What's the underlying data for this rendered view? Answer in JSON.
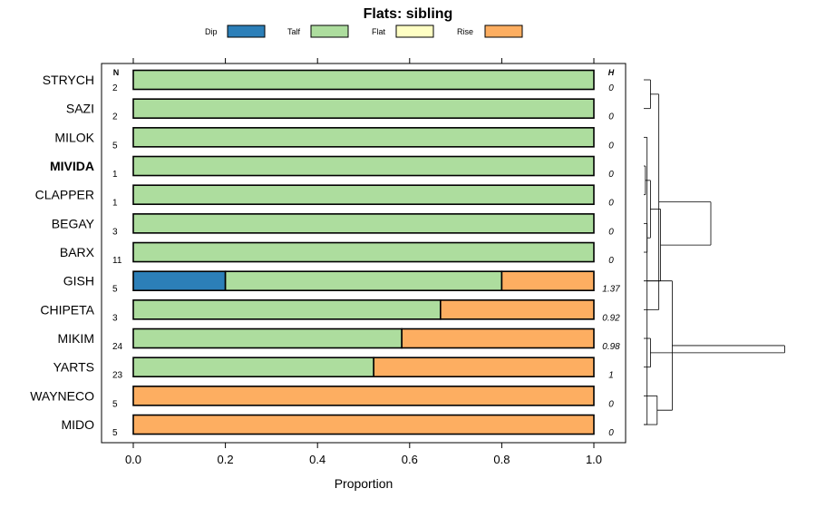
{
  "chart_data": {
    "type": "bar",
    "stacked": true,
    "orientation": "horizontal",
    "title": "Flats: sibling",
    "xlabel": "Proportion",
    "xlim": [
      0,
      1
    ],
    "x_ticks": [
      0,
      0.2,
      0.4,
      0.6,
      0.8,
      1
    ],
    "x_tick_labels": [
      "0.0",
      "0.2",
      "0.4",
      "0.6",
      "0.8",
      "1.0"
    ],
    "n_header": "N",
    "h_header": "H",
    "legend": [
      {
        "name": "Dip",
        "color": "#2c7fb8"
      },
      {
        "name": "Talf",
        "color": "#addd9e"
      },
      {
        "name": "Flat",
        "color": "#ffffc4"
      },
      {
        "name": "Rise",
        "color": "#fdae61"
      }
    ],
    "rows": [
      {
        "label": "STRYCH",
        "bold": false,
        "n": "2",
        "h": "0",
        "values": [
          0,
          1,
          0,
          0
        ]
      },
      {
        "label": "SAZI",
        "bold": false,
        "n": "2",
        "h": "0",
        "values": [
          0,
          1,
          0,
          0
        ]
      },
      {
        "label": "MILOK",
        "bold": false,
        "n": "5",
        "h": "0",
        "values": [
          0,
          1,
          0,
          0
        ]
      },
      {
        "label": "MIVIDA",
        "bold": true,
        "n": "1",
        "h": "0",
        "values": [
          0,
          1,
          0,
          0
        ]
      },
      {
        "label": "CLAPPER",
        "bold": false,
        "n": "1",
        "h": "0",
        "values": [
          0,
          1,
          0,
          0
        ]
      },
      {
        "label": "BEGAY",
        "bold": false,
        "n": "3",
        "h": "0",
        "values": [
          0,
          1,
          0,
          0
        ]
      },
      {
        "label": "BARX",
        "bold": false,
        "n": "11",
        "h": "0",
        "values": [
          0,
          1,
          0,
          0
        ]
      },
      {
        "label": "GISH",
        "bold": false,
        "n": "5",
        "h": "1.37",
        "values": [
          0.2,
          0.6,
          0,
          0.2
        ]
      },
      {
        "label": "CHIPETA",
        "bold": false,
        "n": "3",
        "h": "0.92",
        "values": [
          0,
          0.667,
          0,
          0.333
        ]
      },
      {
        "label": "MIKIM",
        "bold": false,
        "n": "24",
        "h": "0.98",
        "values": [
          0,
          0.583,
          0,
          0.417
        ]
      },
      {
        "label": "YARTS",
        "bold": false,
        "n": "23",
        "h": "1",
        "values": [
          0,
          0.522,
          0,
          0.478
        ]
      },
      {
        "label": "WAYNECO",
        "bold": false,
        "n": "5",
        "h": "0",
        "values": [
          0,
          0,
          0,
          1
        ]
      },
      {
        "label": "MIDO",
        "bold": false,
        "n": "5",
        "h": "0",
        "values": [
          0,
          0,
          0,
          1
        ]
      }
    ],
    "dendrogram": {
      "leaves": [
        "STRYCH",
        "SAZI",
        "MILOK",
        "MIVIDA",
        "CLAPPER",
        "BEGAY",
        "BARX",
        "GISH",
        "CHIPETA",
        "MIKIM",
        "YARTS",
        "WAYNECO",
        "MIDO"
      ],
      "merges": [
        {
          "a": 4,
          "b": 5,
          "height": 0.01
        },
        {
          "a": 6,
          "b": 7,
          "height": 0.02
        },
        {
          "a": 3,
          "b": 13,
          "height": 0.02
        },
        {
          "a": 15,
          "b": 14,
          "height": 0.04
        },
        {
          "a": 1,
          "b": 2,
          "height": 0.04
        },
        {
          "a": 10,
          "b": 11,
          "height": 0.04
        },
        {
          "a": 12,
          "b": 13,
          "height": 0.08
        },
        {
          "a": 9,
          "b": 18,
          "height": 0.09
        },
        {
          "a": 17,
          "b": 16,
          "height": 0.1
        },
        {
          "a": 8,
          "b": 20,
          "height": 0.17
        },
        {
          "a": 21,
          "b": 22,
          "height": 0.4
        },
        {
          "a": 23,
          "b": 19,
          "height": 0.84
        }
      ]
    }
  }
}
